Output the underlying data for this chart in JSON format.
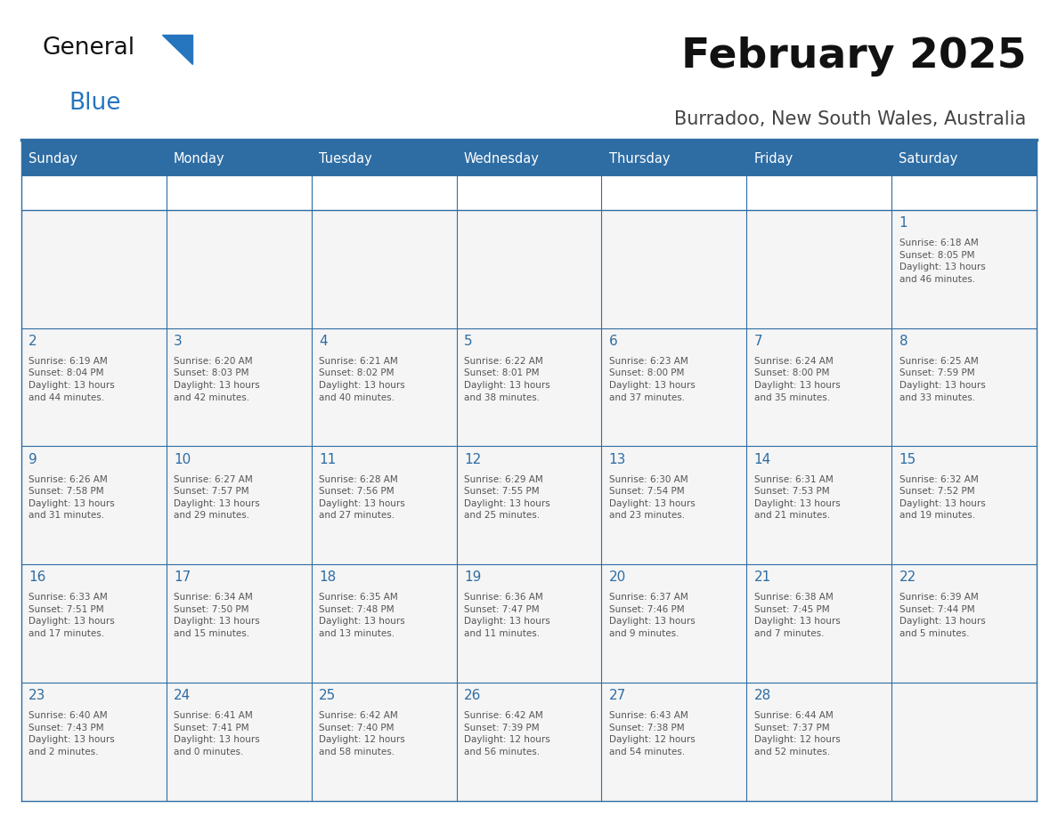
{
  "title": "February 2025",
  "subtitle": "Burradoo, New South Wales, Australia",
  "days_of_week": [
    "Sunday",
    "Monday",
    "Tuesday",
    "Wednesday",
    "Thursday",
    "Friday",
    "Saturday"
  ],
  "header_bg": "#2E6DA4",
  "header_text": "#FFFFFF",
  "cell_bg": "#F5F5F5",
  "border_color": "#2E6DA4",
  "day_num_color": "#2E6DA4",
  "info_text_color": "#555555",
  "logo_general_color": "#1a1a1a",
  "logo_blue_color": "#2575BF",
  "weeks": [
    {
      "days": [
        {
          "date": null,
          "info": null
        },
        {
          "date": null,
          "info": null
        },
        {
          "date": null,
          "info": null
        },
        {
          "date": null,
          "info": null
        },
        {
          "date": null,
          "info": null
        },
        {
          "date": null,
          "info": null
        },
        {
          "date": "1",
          "info": "Sunrise: 6:18 AM\nSunset: 8:05 PM\nDaylight: 13 hours\nand 46 minutes."
        }
      ]
    },
    {
      "days": [
        {
          "date": "2",
          "info": "Sunrise: 6:19 AM\nSunset: 8:04 PM\nDaylight: 13 hours\nand 44 minutes."
        },
        {
          "date": "3",
          "info": "Sunrise: 6:20 AM\nSunset: 8:03 PM\nDaylight: 13 hours\nand 42 minutes."
        },
        {
          "date": "4",
          "info": "Sunrise: 6:21 AM\nSunset: 8:02 PM\nDaylight: 13 hours\nand 40 minutes."
        },
        {
          "date": "5",
          "info": "Sunrise: 6:22 AM\nSunset: 8:01 PM\nDaylight: 13 hours\nand 38 minutes."
        },
        {
          "date": "6",
          "info": "Sunrise: 6:23 AM\nSunset: 8:00 PM\nDaylight: 13 hours\nand 37 minutes."
        },
        {
          "date": "7",
          "info": "Sunrise: 6:24 AM\nSunset: 8:00 PM\nDaylight: 13 hours\nand 35 minutes."
        },
        {
          "date": "8",
          "info": "Sunrise: 6:25 AM\nSunset: 7:59 PM\nDaylight: 13 hours\nand 33 minutes."
        }
      ]
    },
    {
      "days": [
        {
          "date": "9",
          "info": "Sunrise: 6:26 AM\nSunset: 7:58 PM\nDaylight: 13 hours\nand 31 minutes."
        },
        {
          "date": "10",
          "info": "Sunrise: 6:27 AM\nSunset: 7:57 PM\nDaylight: 13 hours\nand 29 minutes."
        },
        {
          "date": "11",
          "info": "Sunrise: 6:28 AM\nSunset: 7:56 PM\nDaylight: 13 hours\nand 27 minutes."
        },
        {
          "date": "12",
          "info": "Sunrise: 6:29 AM\nSunset: 7:55 PM\nDaylight: 13 hours\nand 25 minutes."
        },
        {
          "date": "13",
          "info": "Sunrise: 6:30 AM\nSunset: 7:54 PM\nDaylight: 13 hours\nand 23 minutes."
        },
        {
          "date": "14",
          "info": "Sunrise: 6:31 AM\nSunset: 7:53 PM\nDaylight: 13 hours\nand 21 minutes."
        },
        {
          "date": "15",
          "info": "Sunrise: 6:32 AM\nSunset: 7:52 PM\nDaylight: 13 hours\nand 19 minutes."
        }
      ]
    },
    {
      "days": [
        {
          "date": "16",
          "info": "Sunrise: 6:33 AM\nSunset: 7:51 PM\nDaylight: 13 hours\nand 17 minutes."
        },
        {
          "date": "17",
          "info": "Sunrise: 6:34 AM\nSunset: 7:50 PM\nDaylight: 13 hours\nand 15 minutes."
        },
        {
          "date": "18",
          "info": "Sunrise: 6:35 AM\nSunset: 7:48 PM\nDaylight: 13 hours\nand 13 minutes."
        },
        {
          "date": "19",
          "info": "Sunrise: 6:36 AM\nSunset: 7:47 PM\nDaylight: 13 hours\nand 11 minutes."
        },
        {
          "date": "20",
          "info": "Sunrise: 6:37 AM\nSunset: 7:46 PM\nDaylight: 13 hours\nand 9 minutes."
        },
        {
          "date": "21",
          "info": "Sunrise: 6:38 AM\nSunset: 7:45 PM\nDaylight: 13 hours\nand 7 minutes."
        },
        {
          "date": "22",
          "info": "Sunrise: 6:39 AM\nSunset: 7:44 PM\nDaylight: 13 hours\nand 5 minutes."
        }
      ]
    },
    {
      "days": [
        {
          "date": "23",
          "info": "Sunrise: 6:40 AM\nSunset: 7:43 PM\nDaylight: 13 hours\nand 2 minutes."
        },
        {
          "date": "24",
          "info": "Sunrise: 6:41 AM\nSunset: 7:41 PM\nDaylight: 13 hours\nand 0 minutes."
        },
        {
          "date": "25",
          "info": "Sunrise: 6:42 AM\nSunset: 7:40 PM\nDaylight: 12 hours\nand 58 minutes."
        },
        {
          "date": "26",
          "info": "Sunrise: 6:42 AM\nSunset: 7:39 PM\nDaylight: 12 hours\nand 56 minutes."
        },
        {
          "date": "27",
          "info": "Sunrise: 6:43 AM\nSunset: 7:38 PM\nDaylight: 12 hours\nand 54 minutes."
        },
        {
          "date": "28",
          "info": "Sunrise: 6:44 AM\nSunset: 7:37 PM\nDaylight: 12 hours\nand 52 minutes."
        },
        {
          "date": null,
          "info": null
        }
      ]
    }
  ]
}
